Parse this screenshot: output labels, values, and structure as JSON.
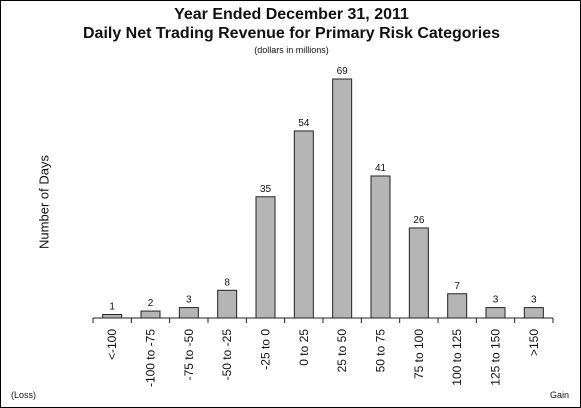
{
  "header": {
    "title_line1": "Year Ended December 31, 2011",
    "title_line2": "Daily Net Trading Revenue for Primary Risk Categories",
    "subtitle": "(dollars in millions)"
  },
  "footer": {
    "loss_label": "(Loss)",
    "gain_label": "Gain"
  },
  "chart_data": {
    "type": "bar",
    "title": "Year Ended December 31, 2011 Daily Net Trading Revenue for Primary Risk Categories",
    "subtitle": "(dollars in millions)",
    "xlabel": "",
    "ylabel": "Number of Days",
    "categories": [
      "<-100",
      "-100 to -75",
      "-75 to -50",
      "-50 to -25",
      "-25 to 0",
      "0 to 25",
      "25 to 50",
      "50 to 75",
      "75 to 100",
      "100 to 125",
      "125 to 150",
      ">150"
    ],
    "values": [
      1,
      2,
      3,
      8,
      35,
      54,
      69,
      41,
      26,
      7,
      3,
      3
    ],
    "ylim": [
      0,
      75
    ],
    "grid": false,
    "bar_color": "#b5b5b5",
    "bar_edge_color": "#222222"
  }
}
